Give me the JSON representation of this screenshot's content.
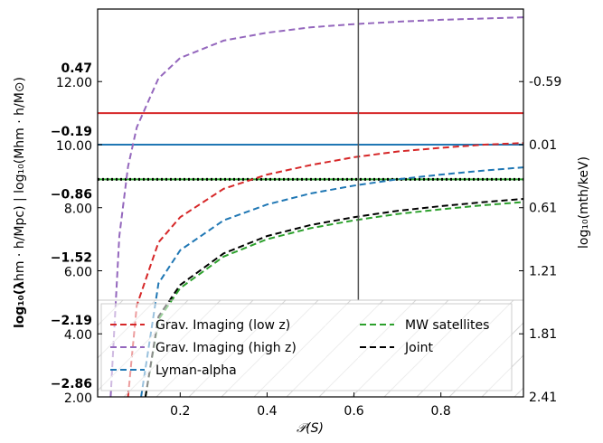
{
  "chart_data": {
    "type": "line",
    "xlabel": "𝒫(S)",
    "xlim": [
      0.01,
      0.99
    ],
    "ylim": [
      2.0,
      14.3
    ],
    "x_ticks": [
      "0.2",
      "0.4",
      "0.6",
      "0.8"
    ],
    "left_ticks": [
      {
        "y": 2.0,
        "bold": "−2.86",
        "normal": "2.00"
      },
      {
        "y": 4.0,
        "bold": "−2.19",
        "normal": "4.00"
      },
      {
        "y": 6.0,
        "bold": "−1.52",
        "normal": "6.00"
      },
      {
        "y": 8.0,
        "bold": "−0.86",
        "normal": "8.00"
      },
      {
        "y": 10.0,
        "bold": "−0.19",
        "normal": "10.00"
      },
      {
        "y": 12.0,
        "bold": "0.47",
        "normal": "12.00"
      }
    ],
    "left_label_bold": "log₁₀(λ",
    "left_label_rest": "hm · h/Mpc) | log₁₀(Mhm · h/M⊙)",
    "right_ticks": [
      {
        "y": 2.0,
        "label": "2.41"
      },
      {
        "y": 4.0,
        "label": "1.81"
      },
      {
        "y": 6.0,
        "label": "1.21"
      },
      {
        "y": 8.0,
        "label": "0.61"
      },
      {
        "y": 10.0,
        "label": "0.01"
      },
      {
        "y": 12.0,
        "label": "-0.59"
      }
    ],
    "right_label": "log₁₀(mth/keV)",
    "vline_x": 0.61,
    "hlines": [
      {
        "name": "Grav. Imaging (low z)",
        "y": 11.0,
        "color": "#d62728",
        "dash": "solid"
      },
      {
        "name": "Lyman-alpha",
        "y": 10.0,
        "color": "#1f77b4",
        "dash": "solid"
      },
      {
        "name": "MW satellites",
        "y": 8.9,
        "color": "#2ca02c",
        "dash": "solid"
      },
      {
        "name": "Joint",
        "y": 8.9,
        "color": "#000000",
        "dash": "dotted"
      }
    ],
    "series": [
      {
        "name": "Grav. Imaging (low z)",
        "color": "#d62728",
        "x": [
          0.08,
          0.1,
          0.15,
          0.2,
          0.3,
          0.4,
          0.5,
          0.6,
          0.7,
          0.8,
          0.9,
          0.99
        ],
        "y": [
          2.0,
          4.9,
          6.9,
          7.7,
          8.6,
          9.05,
          9.35,
          9.6,
          9.78,
          9.9,
          10.0,
          10.05
        ]
      },
      {
        "name": "Grav. Imaging (high z)",
        "color": "#9467bd",
        "x": [
          0.04,
          0.06,
          0.08,
          0.1,
          0.15,
          0.2,
          0.3,
          0.4,
          0.5,
          0.6,
          0.7,
          0.8,
          0.9,
          0.99
        ],
        "y": [
          2.0,
          7.1,
          9.3,
          10.55,
          12.1,
          12.75,
          13.3,
          13.55,
          13.72,
          13.82,
          13.9,
          13.96,
          14.0,
          14.04
        ]
      },
      {
        "name": "Lyman-alpha",
        "color": "#1f77b4",
        "x": [
          0.11,
          0.15,
          0.2,
          0.3,
          0.4,
          0.5,
          0.6,
          0.7,
          0.8,
          0.9,
          0.99
        ],
        "y": [
          2.0,
          5.6,
          6.65,
          7.6,
          8.1,
          8.45,
          8.7,
          8.9,
          9.05,
          9.18,
          9.28
        ]
      },
      {
        "name": "MW satellites",
        "color": "#2ca02c",
        "x": [
          0.12,
          0.15,
          0.2,
          0.3,
          0.4,
          0.5,
          0.6,
          0.7,
          0.8,
          0.9,
          0.99
        ],
        "y": [
          2.0,
          4.45,
          5.45,
          6.45,
          7.0,
          7.35,
          7.6,
          7.8,
          7.95,
          8.08,
          8.18
        ]
      },
      {
        "name": "Joint",
        "color": "#000000",
        "x": [
          0.12,
          0.15,
          0.2,
          0.3,
          0.4,
          0.5,
          0.6,
          0.7,
          0.8,
          0.9,
          0.99
        ],
        "y": [
          2.0,
          4.55,
          5.55,
          6.55,
          7.1,
          7.45,
          7.7,
          7.9,
          8.05,
          8.18,
          8.28
        ]
      }
    ],
    "legend": {
      "position": "lower center",
      "items": [
        {
          "label": "Grav. Imaging (low z)",
          "color": "#d62728"
        },
        {
          "label": "Grav. Imaging (high z)",
          "color": "#9467bd"
        },
        {
          "label": "Lyman-alpha",
          "color": "#1f77b4"
        },
        {
          "label": "MW satellites",
          "color": "#2ca02c"
        },
        {
          "label": "Joint",
          "color": "#000000"
        }
      ]
    }
  }
}
